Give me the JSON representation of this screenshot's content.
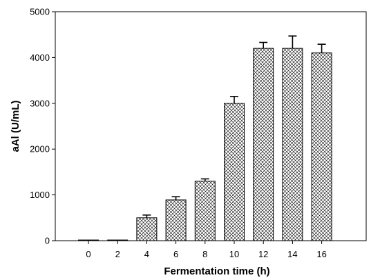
{
  "chart_data": {
    "type": "bar",
    "title": "",
    "xlabel": "Fermentation time (h)",
    "ylabel": "aAl (U/mL)",
    "categories": [
      "0",
      "2",
      "4",
      "6",
      "8",
      "10",
      "12",
      "14",
      "16"
    ],
    "values": [
      5,
      5,
      500,
      890,
      1300,
      3000,
      4200,
      4200,
      4100
    ],
    "error_bars": [
      5,
      5,
      60,
      70,
      50,
      150,
      130,
      270,
      190
    ],
    "ylim": [
      0,
      5000
    ],
    "yticks": [
      0,
      1000,
      2000,
      3000,
      4000,
      5000
    ],
    "grid": false,
    "legend": "none",
    "bar_fill_pattern": "crosshatch",
    "bar_color": "#000000",
    "background_color": "#ffffff"
  }
}
